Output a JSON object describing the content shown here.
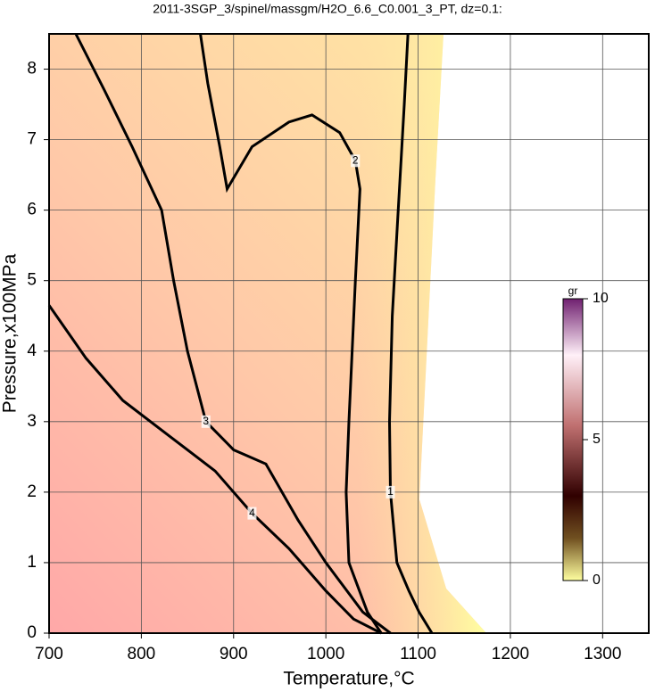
{
  "chart_data": {
    "type": "contour",
    "title": "2011-3SGP_3/spinel/massgm/H2O_6.6_C0.001_3_PT, dz=0.1:",
    "xlabel": "Temperature,°C",
    "ylabel": "Pressure,x100MPa",
    "xlim": [
      700,
      1350
    ],
    "ylim": [
      0,
      8.5
    ],
    "xticks": [
      700,
      800,
      900,
      1000,
      1100,
      1200,
      1300
    ],
    "yticks": [
      0,
      1,
      2,
      3,
      4,
      5,
      6,
      7,
      8
    ],
    "grid": true,
    "colorbar": {
      "label": "gr",
      "lim": [
        0,
        10
      ],
      "ticks": [
        0,
        5,
        10
      ]
    },
    "contours": [
      {
        "level": 1,
        "x": [
          1089,
          1085,
          1078,
          1072,
          1069,
          1070,
          1077,
          1090,
          1101,
          1115
        ],
        "y": [
          8.5,
          7.5,
          5.9,
          4.5,
          3.0,
          2.0,
          1.0,
          0.6,
          0.3,
          0
        ]
      },
      {
        "level": 2,
        "x": [
          864,
          872,
          885,
          893,
          920,
          960,
          985,
          1015,
          1032,
          1037,
          1032,
          1025,
          1022,
          1025,
          1045,
          1060
        ],
        "y": [
          8.5,
          7.8,
          6.9,
          6.3,
          6.9,
          7.25,
          7.35,
          7.1,
          6.7,
          6.3,
          5.0,
          3.0,
          2.0,
          1.0,
          0.3,
          0
        ]
      },
      {
        "level": 3,
        "x": [
          729,
          760,
          790,
          822,
          835,
          850,
          870,
          900,
          935,
          970,
          1000,
          1040,
          1070
        ],
        "y": [
          8.5,
          7.7,
          6.9,
          6.0,
          5.0,
          4.0,
          3.0,
          2.6,
          2.4,
          1.6,
          1.0,
          0.3,
          0
        ]
      },
      {
        "level": 4,
        "x": [
          700,
          740,
          780,
          830,
          880,
          920,
          960,
          1000,
          1030,
          1060
        ],
        "y": [
          4.65,
          3.9,
          3.3,
          2.8,
          2.3,
          1.7,
          1.2,
          0.6,
          0.2,
          0
        ]
      }
    ]
  }
}
